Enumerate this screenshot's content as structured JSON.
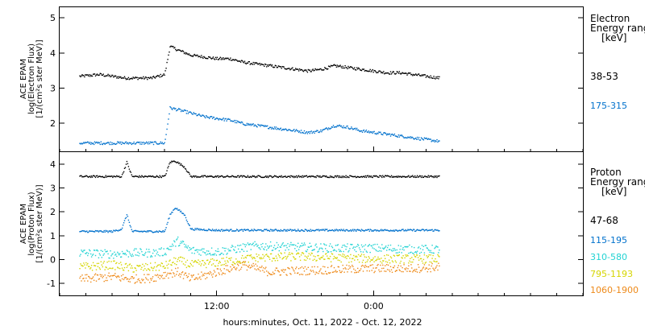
{
  "chart_data": [
    {
      "type": "scatter",
      "ylabel_lines": [
        "ACE EPAM",
        "log(Electron Flux)",
        "[1/(cm²s ster MeV)]"
      ],
      "ylim": [
        1.2,
        5.3
      ],
      "yticks": [
        2,
        3,
        4,
        5
      ],
      "legend_title_lines": [
        "Electron",
        "Energy ranges",
        "[keV]"
      ],
      "series": [
        {
          "name": "38-53",
          "color": "#000000",
          "x": [
            -10.5,
            -9.0,
            -8.0,
            -7.0,
            -6.5,
            -5.0,
            -4.0,
            -3.6,
            -3.0,
            -2.0,
            -1.0,
            0.0,
            1.0,
            2.0,
            3.0,
            4.0,
            5.0,
            6.0,
            7.0,
            8.0,
            9.0,
            10.0,
            11.0,
            12.0,
            13.0,
            14.0,
            15.0,
            16.0,
            17.0
          ],
          "y": [
            3.35,
            3.4,
            3.35,
            3.3,
            3.3,
            3.3,
            3.4,
            4.2,
            4.1,
            3.95,
            3.9,
            3.85,
            3.85,
            3.75,
            3.7,
            3.65,
            3.6,
            3.55,
            3.5,
            3.55,
            3.65,
            3.6,
            3.55,
            3.5,
            3.45,
            3.45,
            3.4,
            3.35,
            3.3
          ]
        },
        {
          "name": "175-315",
          "color": "#0071cc",
          "x": [
            -10.5,
            -9.0,
            -8.0,
            -7.0,
            -6.5,
            -5.0,
            -4.0,
            -3.6,
            -3.0,
            -2.0,
            -1.0,
            0.0,
            1.0,
            2.0,
            3.0,
            4.0,
            5.0,
            6.0,
            7.0,
            8.0,
            9.0,
            10.0,
            11.0,
            12.0,
            13.0,
            14.0,
            15.0,
            16.0,
            17.0
          ],
          "y": [
            1.45,
            1.45,
            1.45,
            1.45,
            1.45,
            1.45,
            1.45,
            2.45,
            2.4,
            2.3,
            2.2,
            2.15,
            2.1,
            2.0,
            1.95,
            1.9,
            1.85,
            1.8,
            1.75,
            1.8,
            1.95,
            1.9,
            1.8,
            1.75,
            1.7,
            1.65,
            1.6,
            1.55,
            1.5
          ]
        }
      ]
    },
    {
      "type": "scatter",
      "ylabel_lines": [
        "ACE EPAM",
        "log(Proton Flux)",
        "[1/(cm²s ster MeV)]"
      ],
      "ylim": [
        -1.5,
        4.5
      ],
      "yticks": [
        -1,
        0,
        1,
        2,
        3,
        4
      ],
      "legend_title_lines": [
        "Proton",
        "Energy ranges",
        "[keV]"
      ],
      "series": [
        {
          "name": "47-68",
          "color": "#000000",
          "x": [
            -10.5,
            -8.0,
            -7.3,
            -6.9,
            -6.5,
            -5.0,
            -4.0,
            -3.6,
            -3.2,
            -2.5,
            -2.0,
            0.0,
            3.0,
            6.0,
            9.0,
            12.0,
            15.0,
            17.0
          ],
          "y": [
            3.5,
            3.5,
            3.5,
            4.1,
            3.5,
            3.5,
            3.5,
            4.1,
            4.15,
            3.9,
            3.5,
            3.5,
            3.5,
            3.5,
            3.5,
            3.5,
            3.5,
            3.5
          ]
        },
        {
          "name": "115-195",
          "color": "#0071cc",
          "x": [
            -10.5,
            -8.0,
            -7.3,
            -6.9,
            -6.5,
            -5.0,
            -4.0,
            -3.6,
            -3.2,
            -2.5,
            -2.0,
            0.0,
            3.0,
            6.0,
            9.0,
            12.0,
            15.0,
            17.0
          ],
          "y": [
            1.2,
            1.2,
            1.3,
            1.9,
            1.2,
            1.2,
            1.2,
            1.9,
            2.2,
            1.9,
            1.3,
            1.25,
            1.25,
            1.25,
            1.25,
            1.25,
            1.25,
            1.25
          ]
        },
        {
          "name": "310-580",
          "color": "#22d3d3",
          "x": [
            -10.5,
            -8.0,
            -6.5,
            -5.0,
            -4.0,
            -3.0,
            -2.0,
            0.0,
            3.0,
            6.0,
            9.0,
            12.0,
            15.0,
            17.0
          ],
          "y": [
            0.3,
            0.25,
            0.3,
            0.3,
            0.35,
            0.8,
            0.4,
            0.35,
            0.6,
            0.55,
            0.5,
            0.5,
            0.45,
            0.45
          ]
        },
        {
          "name": "795-1193",
          "color": "#d5d500",
          "x": [
            -10.5,
            -8.0,
            -6.5,
            -5.0,
            -4.0,
            -3.0,
            -2.0,
            0.0,
            3.0,
            6.0,
            9.0,
            12.0,
            15.0,
            17.0
          ],
          "y": [
            -0.3,
            -0.2,
            -0.35,
            -0.3,
            -0.25,
            0.0,
            -0.2,
            -0.1,
            0.1,
            0.15,
            0.1,
            0.05,
            0.05,
            0.05
          ]
        },
        {
          "name": "1060-1900",
          "color": "#ee8a1a",
          "x": [
            -10.5,
            -8.0,
            -6.5,
            -5.0,
            -4.0,
            -3.0,
            -2.0,
            0.0,
            2.0,
            4.0,
            6.0,
            9.0,
            12.0,
            15.0,
            17.0
          ],
          "y": [
            -0.8,
            -0.7,
            -0.8,
            -0.75,
            -0.6,
            -0.5,
            -0.8,
            -0.5,
            -0.2,
            -0.5,
            -0.45,
            -0.4,
            -0.35,
            -0.35,
            -0.3
          ]
        }
      ]
    }
  ],
  "x_axis": {
    "ticks": [
      {
        "x": 0,
        "label": "12:00"
      },
      {
        "x": 12,
        "label": "0:00"
      }
    ],
    "xlim": [
      -12,
      28
    ],
    "xlabel": "hours:minutes, Oct. 11, 2022 - Oct. 12, 2022"
  }
}
